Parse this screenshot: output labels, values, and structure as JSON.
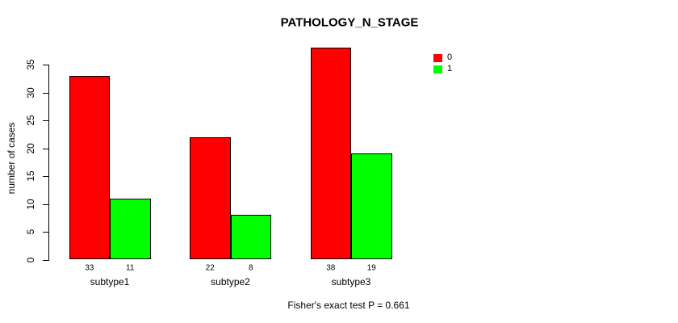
{
  "chart_data": {
    "type": "bar",
    "title": "PATHOLOGY_N_STAGE",
    "ylabel": "number of cases",
    "xlabel": "",
    "categories": [
      "subtype1",
      "subtype2",
      "subtype3"
    ],
    "series": [
      {
        "name": "0",
        "color": "#ff0000",
        "values": [
          33,
          22,
          38
        ]
      },
      {
        "name": "1",
        "color": "#00ff00",
        "values": [
          11,
          8,
          19
        ]
      }
    ],
    "bar_value_labels": [
      [
        33,
        11
      ],
      [
        22,
        8
      ],
      [
        38,
        19
      ]
    ],
    "yticks": [
      0,
      5,
      10,
      15,
      20,
      25,
      30,
      35
    ],
    "ylim": [
      0,
      35
    ],
    "grid": false,
    "legend_position": "top-right",
    "bar_border_color": "#000000",
    "footnote": "Fisher's exact test P = 0.661"
  }
}
